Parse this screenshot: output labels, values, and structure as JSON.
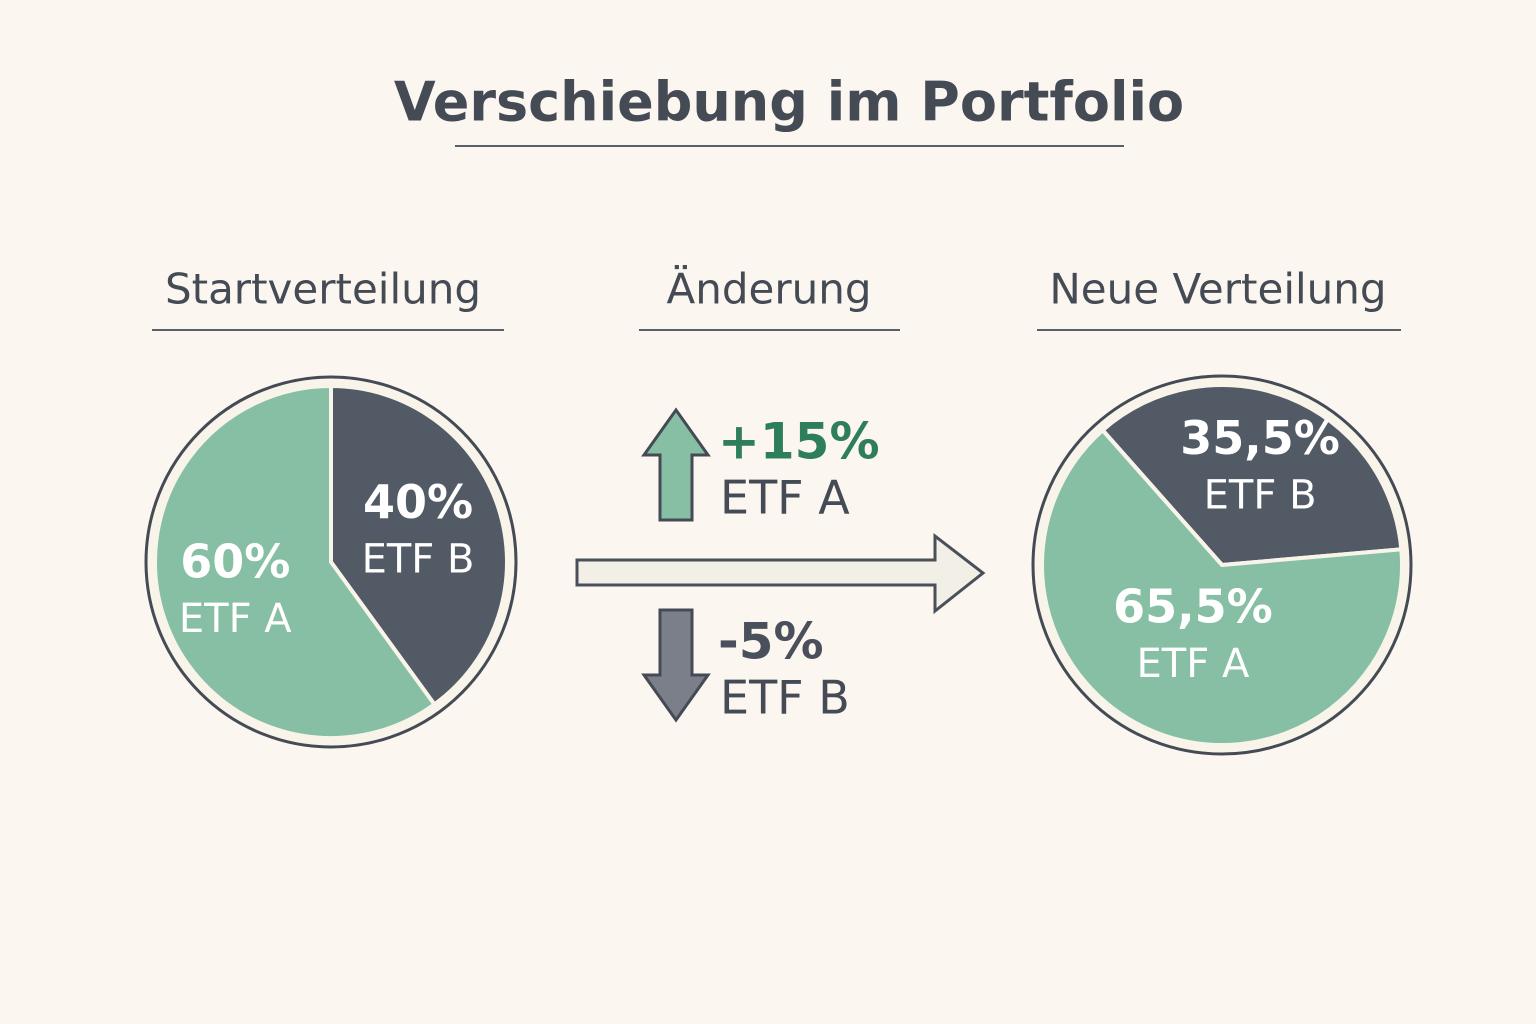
{
  "title": "Verschiebung im Portfolio",
  "chart_data": [
    {
      "type": "pie",
      "title": "Startverteilung",
      "categories": [
        "ETF A",
        "ETF B"
      ],
      "values": [
        60,
        40
      ],
      "value_labels": [
        "60%",
        "40%"
      ],
      "colors": [
        "#86bfa3",
        "#525a66"
      ]
    },
    {
      "type": "pie",
      "title": "Neue Verteilung",
      "categories": [
        "ETF A",
        "ETF B"
      ],
      "values": [
        65.5,
        35.5
      ],
      "value_labels": [
        "65,5%",
        "35,5%"
      ],
      "colors": [
        "#86bfa3",
        "#525a66"
      ]
    }
  ],
  "changes": {
    "title": "Änderung",
    "items": [
      {
        "label": "+15%",
        "value": 15,
        "name": "ETF A",
        "color": "#86bfa3",
        "text_color": "#2e7d5b"
      },
      {
        "label": "-5%",
        "value": -5,
        "name": "ETF B",
        "color": "#7a7f89",
        "text_color": "#4a505b"
      }
    ]
  }
}
